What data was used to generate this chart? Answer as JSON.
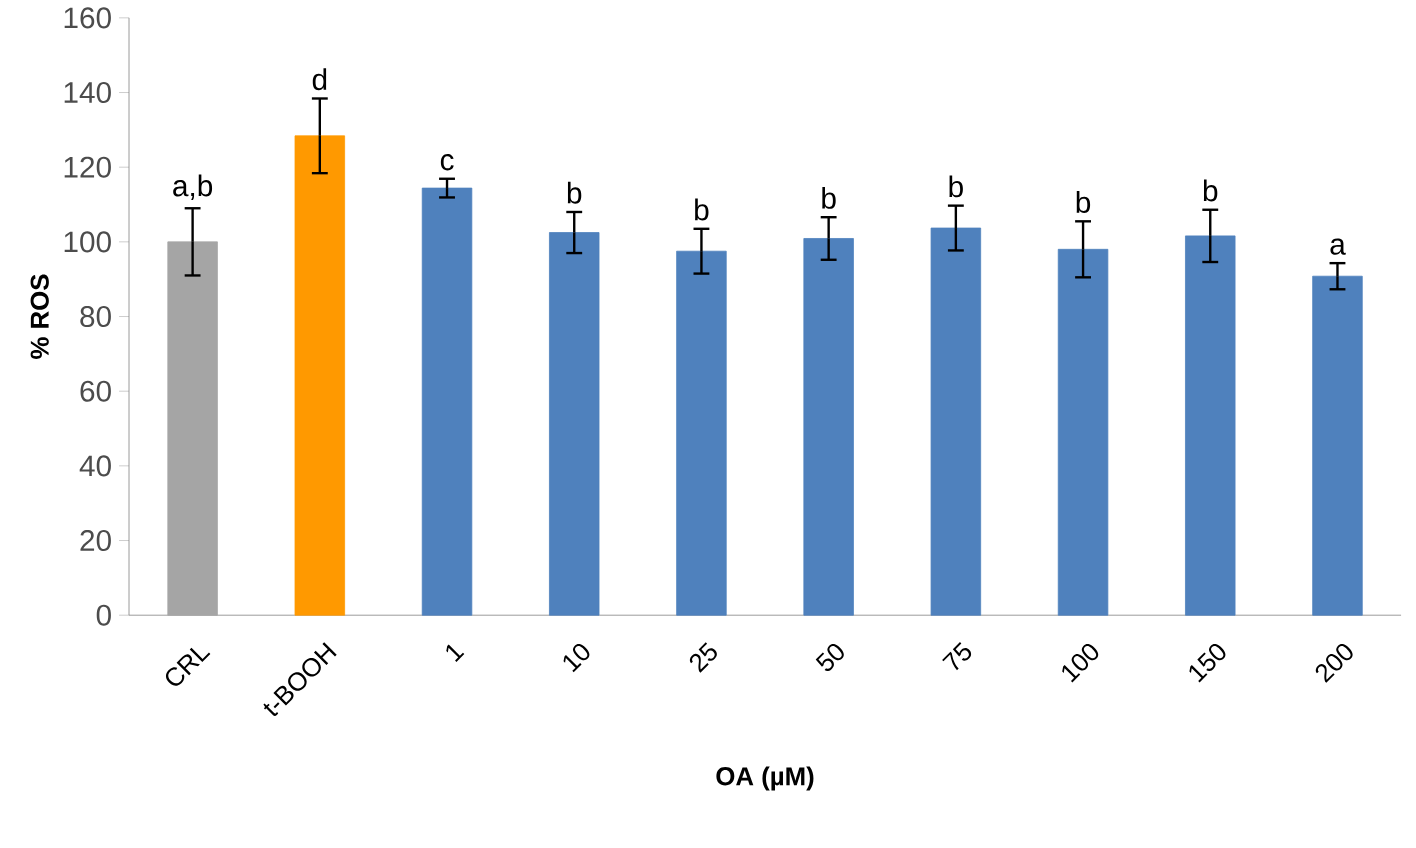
{
  "chart_data": {
    "type": "bar",
    "xlabel": "OA (µM)",
    "ylabel": "% ROS",
    "categories": [
      "CRL",
      "t-BOOH",
      "1",
      "10",
      "25",
      "50",
      "75",
      "100",
      "150",
      "200"
    ],
    "values": [
      100,
      128.4,
      114.4,
      102.5,
      97.5,
      100.9,
      103.7,
      98,
      101.6,
      90.8
    ],
    "errors": [
      9,
      10,
      2.5,
      5.5,
      6,
      5.7,
      6,
      7.5,
      7,
      3.5
    ],
    "colors": [
      "#a5a5a5",
      "#ff9900",
      "#4f81bd",
      "#4f81bd",
      "#4f81bd",
      "#4f81bd",
      "#4f81bd",
      "#4f81bd",
      "#4f81bd",
      "#4f81bd"
    ],
    "ylim": [
      0,
      160
    ],
    "yticks": [
      0,
      20,
      40,
      60,
      80,
      100,
      120,
      140,
      160
    ],
    "grid": false,
    "annotations": [
      {
        "text": "a,b",
        "x": "CRL",
        "y": 109
      },
      {
        "text": "d",
        "x": "t-BOOH",
        "y": 138.4
      },
      {
        "text": "c",
        "x": "1",
        "y": 116.9
      },
      {
        "text": "b",
        "x": "10",
        "y": 108
      },
      {
        "text": "b",
        "x": "25",
        "y": 103.5
      },
      {
        "text": "b",
        "x": "50",
        "y": 106.6
      },
      {
        "text": "b",
        "x": "75",
        "y": 109.7
      },
      {
        "text": "b",
        "x": "100",
        "y": 105.5
      },
      {
        "text": "b",
        "x": "150",
        "y": 108.6
      },
      {
        "text": "a",
        "x": "200",
        "y": 94.3
      }
    ]
  }
}
